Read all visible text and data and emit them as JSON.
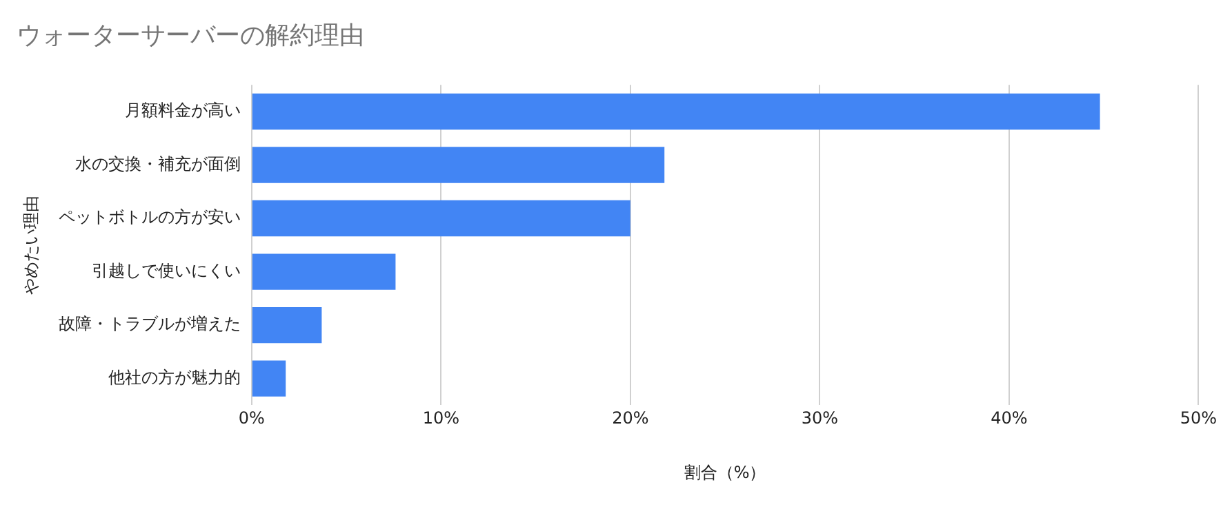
{
  "chart_data": {
    "type": "bar",
    "orientation": "horizontal",
    "title": "ウォーターサーバーの解約理由",
    "xlabel": "割合（%）",
    "ylabel": "やめたい理由",
    "categories": [
      "月額料金が高い",
      "水の交換・補充が面倒",
      "ペットボトルの方が安い",
      "引越しで使いにくい",
      "故障・トラブルが増えた",
      "他社の方が魅力的"
    ],
    "values": [
      44.8,
      21.8,
      20.0,
      7.6,
      3.7,
      1.8
    ],
    "color": "#4285f4",
    "xlim": [
      0,
      50
    ],
    "xticks": [
      {
        "value": 0,
        "label": "0%"
      },
      {
        "value": 10,
        "label": "10%"
      },
      {
        "value": 20,
        "label": "20%"
      },
      {
        "value": 30,
        "label": "30%"
      },
      {
        "value": 40,
        "label": "40%"
      },
      {
        "value": 50,
        "label": "50%"
      }
    ],
    "grid": "x"
  }
}
